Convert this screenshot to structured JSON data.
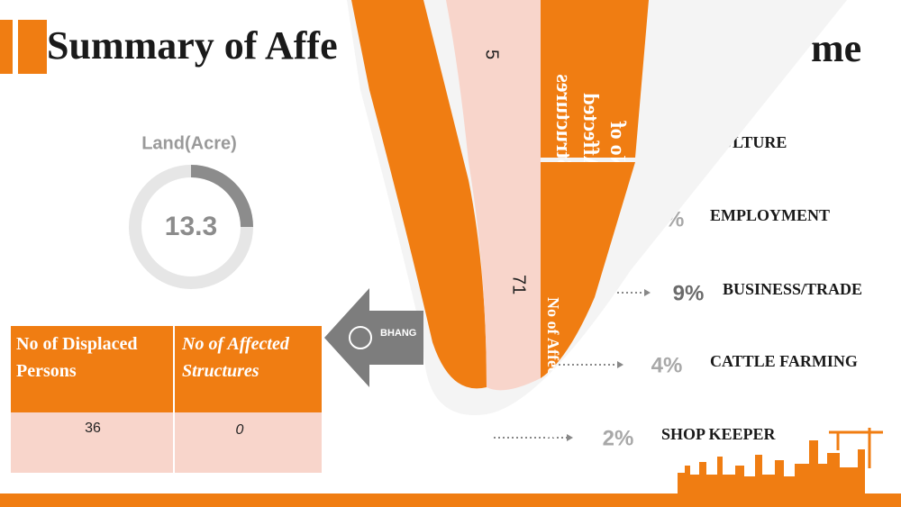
{
  "slide": {
    "title_left": "Summary of Affe",
    "title_right": "me",
    "gauge": {
      "label": "Land(Acre)",
      "value": "13.3"
    },
    "table": {
      "headers": [
        "No of Displaced Persons",
        "No of Affected Structures"
      ],
      "row": [
        "36",
        "0"
      ]
    },
    "list": [
      {
        "percent": null,
        "label": "ULTURE"
      },
      {
        "percent": "7%",
        "label": "EMPLOYMENT"
      },
      {
        "percent": "9%",
        "label": "BUSINESS/TRADE"
      },
      {
        "percent": "4%",
        "label": "CATTLE FARMING"
      },
      {
        "percent": "2%",
        "label": "SHOP KEEPER"
      }
    ],
    "curl": {
      "header": "No of Affected Structures",
      "values": [
        "5",
        "71"
      ],
      "side_header": "No of Affected Structures",
      "button": "BHANG"
    }
  }
}
